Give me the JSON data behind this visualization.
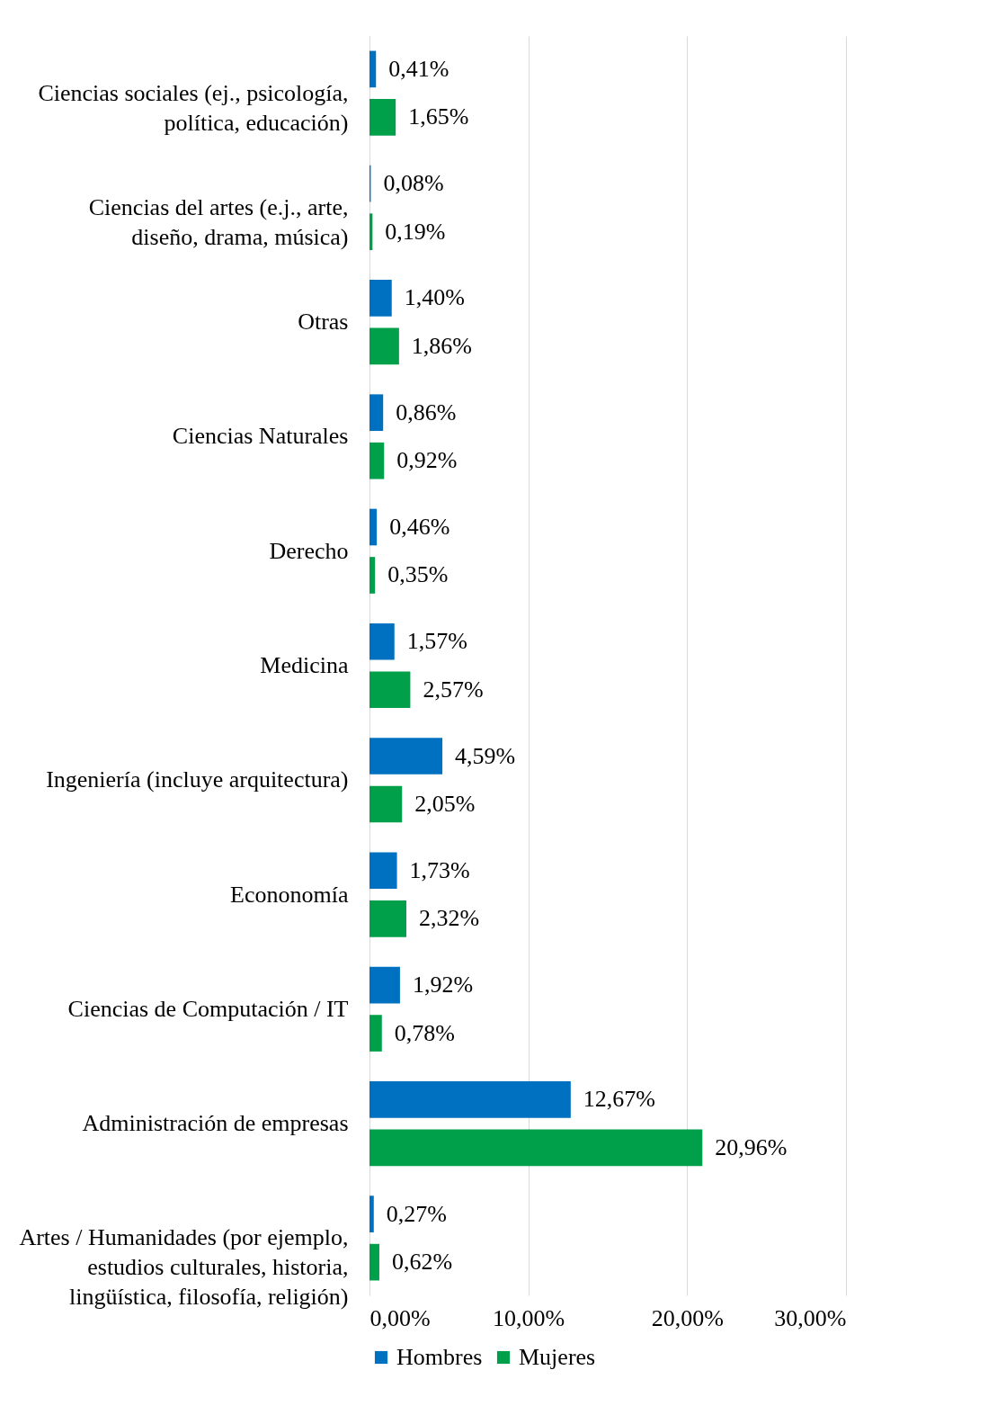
{
  "chart_data": {
    "type": "bar",
    "orientation": "horizontal",
    "categories": [
      "Ciencias sociales (ej., psicología, política, educación)",
      "Ciencias del artes (e.j., arte, diseño, drama, música)",
      "Otras",
      "Ciencias Naturales",
      "Derecho",
      "Medicina",
      "Ingeniería (incluye arquitectura)",
      "Econonomía",
      "Ciencias de Computación / IT",
      "Administración de empresas",
      "Artes / Humanidades (por ejemplo, estudios culturales, historia, lingüística, filosofía, religión)"
    ],
    "series": [
      {
        "name": "Hombres",
        "color": "#0070c0",
        "values": [
          0.41,
          0.08,
          1.4,
          0.86,
          0.46,
          1.57,
          4.59,
          1.73,
          1.92,
          12.67,
          0.27
        ],
        "value_labels": [
          "0,41%",
          "0,08%",
          "1,40%",
          "0,86%",
          "0,46%",
          "1,57%",
          "4,59%",
          "1,73%",
          "1,92%",
          "12,67%",
          "0,27%"
        ]
      },
      {
        "name": "Mujeres",
        "color": "#00a04a",
        "values": [
          1.65,
          0.19,
          1.86,
          0.92,
          0.35,
          2.57,
          2.05,
          2.32,
          0.78,
          20.96,
          0.62
        ],
        "value_labels": [
          "1,65%",
          "0,19%",
          "1,86%",
          "0,92%",
          "0,35%",
          "2,57%",
          "2,05%",
          "2,32%",
          "0,78%",
          "20,96%",
          "0,62%"
        ]
      }
    ],
    "xlim": [
      0,
      30
    ],
    "xticks": [
      {
        "value": 0,
        "label": "0,00%"
      },
      {
        "value": 10,
        "label": "10,00%"
      },
      {
        "value": 20,
        "label": "20,00%"
      },
      {
        "value": 30,
        "label": "30,00%"
      }
    ],
    "grid": "x",
    "legend": "bottom"
  }
}
